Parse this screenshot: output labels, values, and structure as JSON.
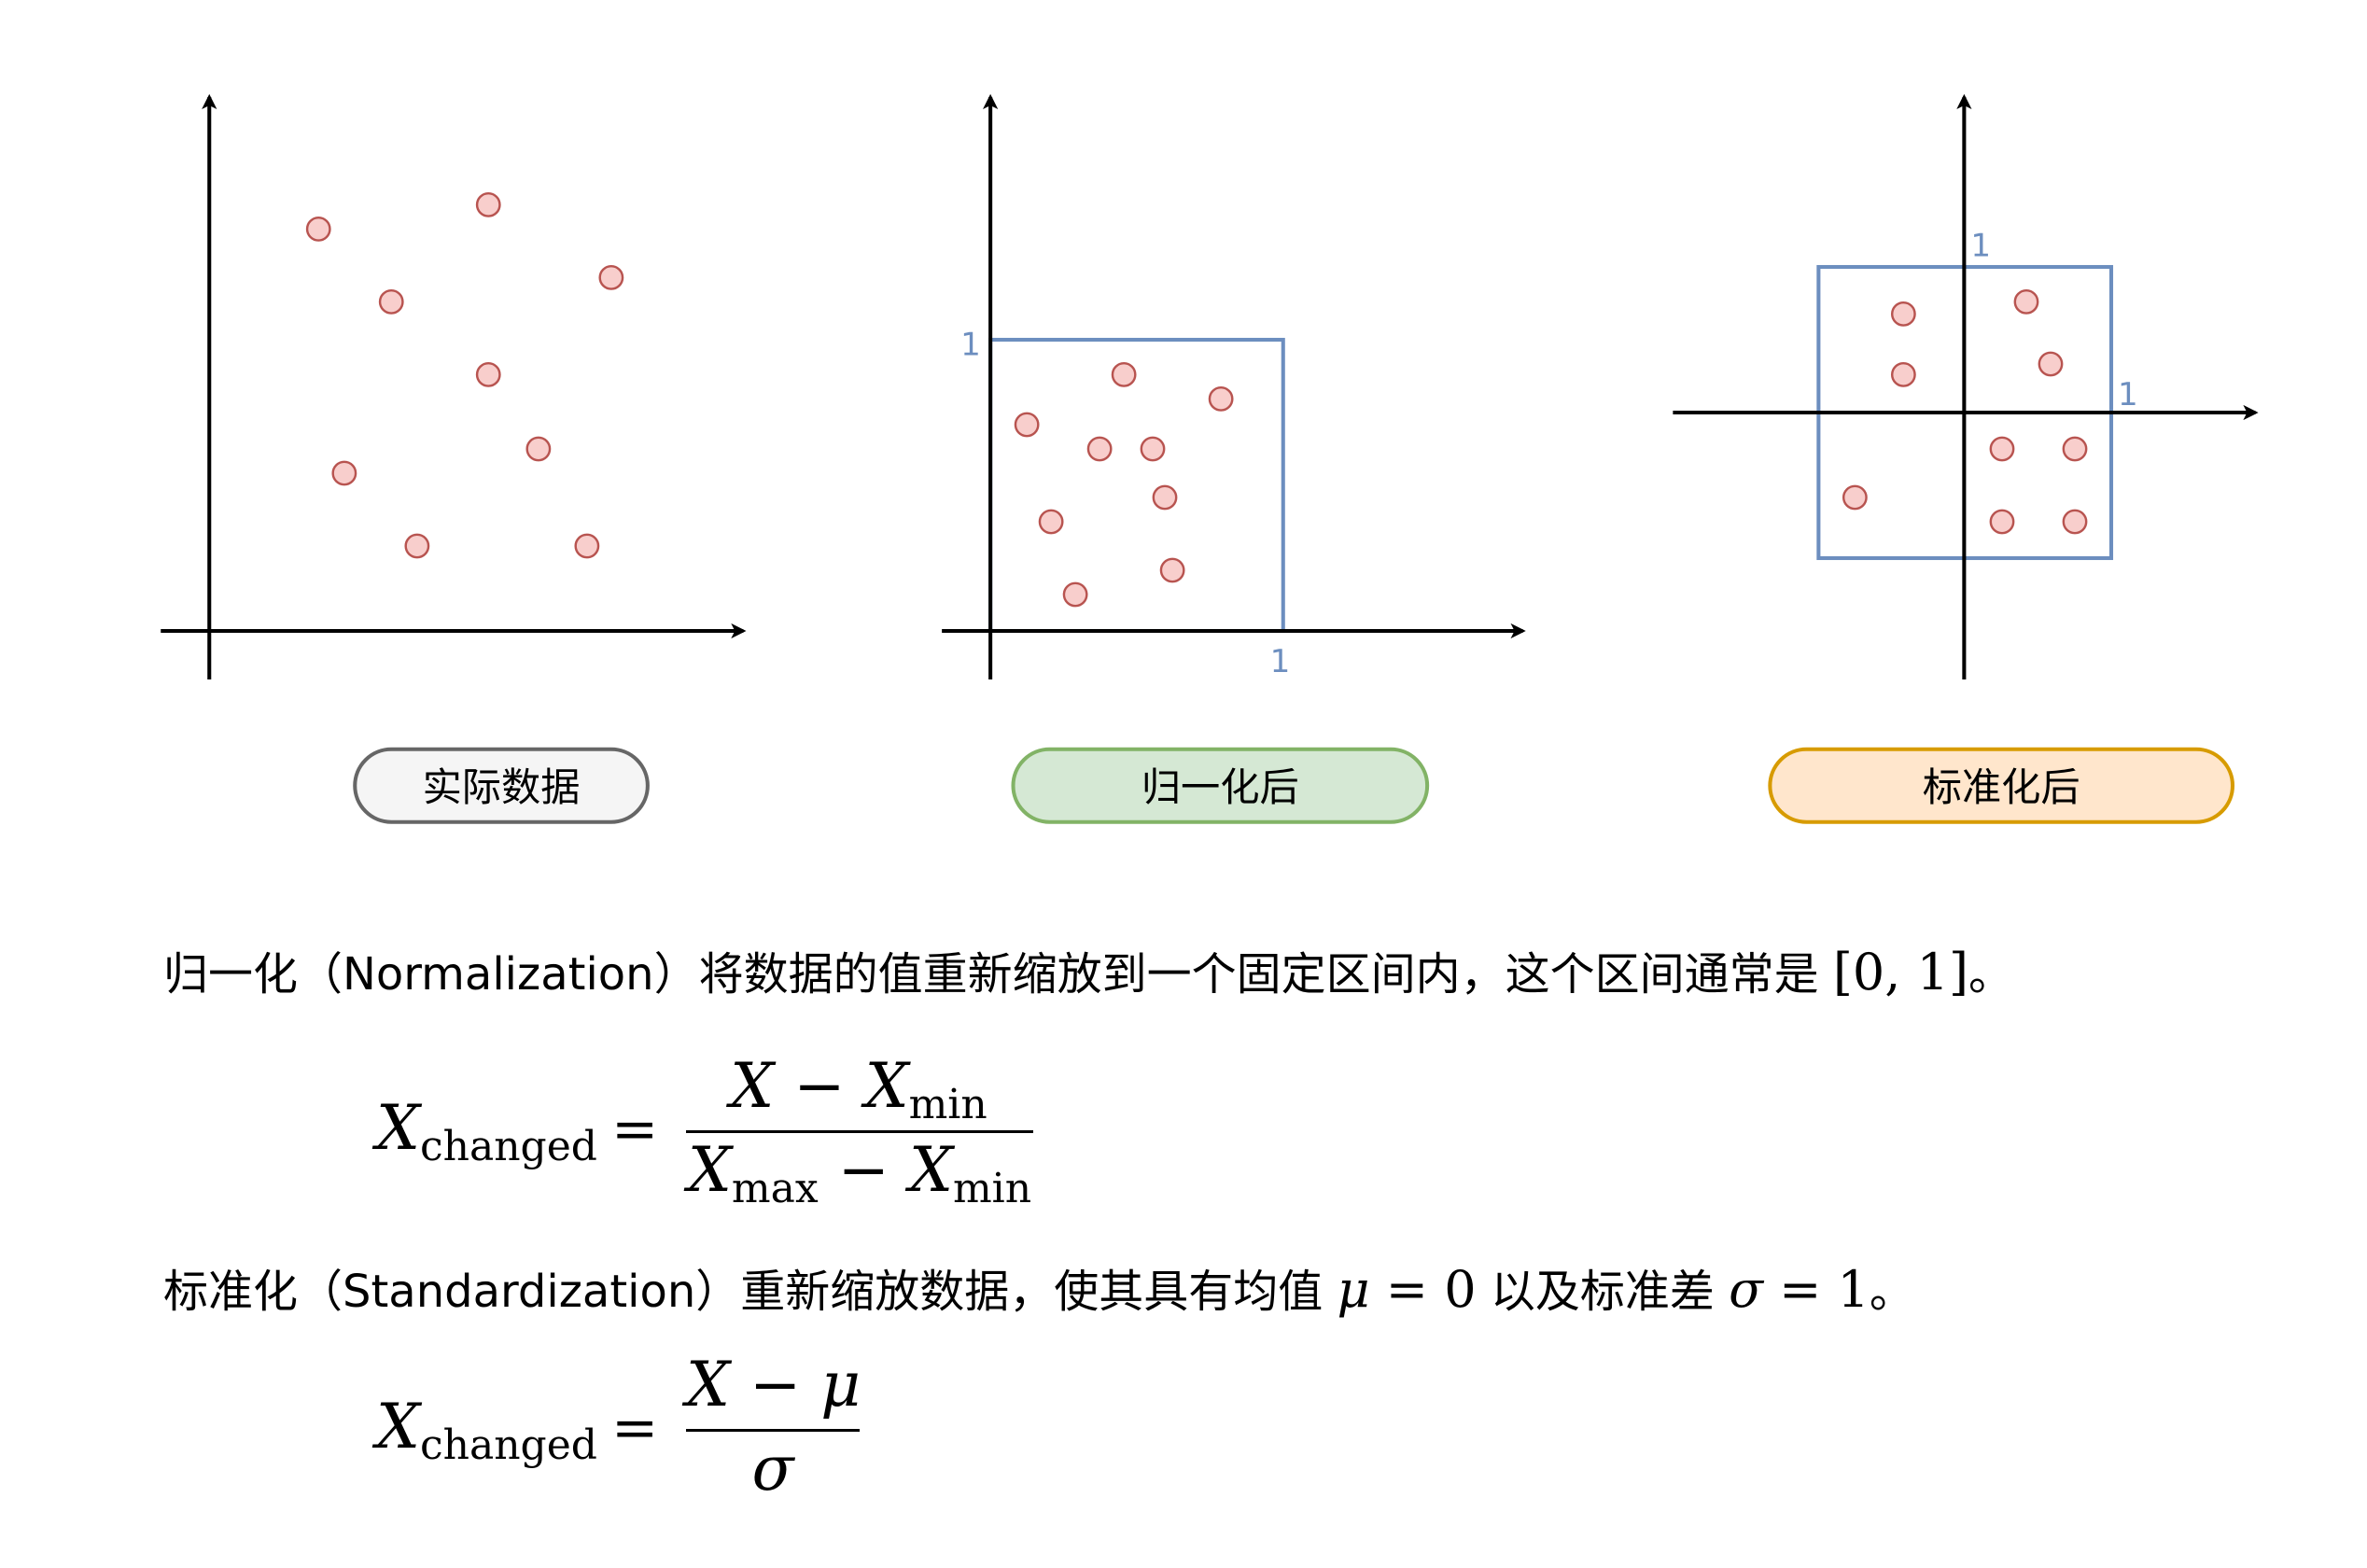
{
  "panels": [
    {
      "label": "实际数据",
      "pill_fill": "#f5f5f5",
      "pill_stroke": "#666666",
      "points": [
        [
          210,
          151
        ],
        [
          322,
          135
        ],
        [
          258,
          199
        ],
        [
          403,
          183
        ],
        [
          322,
          247
        ],
        [
          355,
          296
        ],
        [
          227,
          312
        ],
        [
          275,
          360
        ],
        [
          387,
          360
        ]
      ]
    },
    {
      "label": "归一化后",
      "pill_fill": "#d5e8d4",
      "pill_stroke": "#82b366",
      "unit_x": "1",
      "unit_y": "1",
      "points": [
        [
          741,
          247
        ],
        [
          805,
          263
        ],
        [
          677,
          280
        ],
        [
          725,
          296
        ],
        [
          760,
          296
        ],
        [
          768,
          328
        ],
        [
          693,
          344
        ],
        [
          773,
          376
        ],
        [
          709,
          392
        ]
      ]
    },
    {
      "label": "标准化后",
      "pill_fill": "#ffe6cc",
      "pill_stroke": "#d79b00",
      "unit_x": "1",
      "unit_y": "1",
      "points": [
        [
          1255,
          207
        ],
        [
          1336,
          199
        ],
        [
          1255,
          247
        ],
        [
          1352,
          240
        ],
        [
          1320,
          296
        ],
        [
          1368,
          296
        ],
        [
          1223,
          328
        ],
        [
          1320,
          344
        ],
        [
          1368,
          344
        ]
      ]
    }
  ],
  "colors": {
    "point_fill": "#f8cecc",
    "point_stroke": "#b85450",
    "box_stroke": "#6c8ebf",
    "axis": "#000000"
  },
  "text": {
    "norm_sentence": {
      "prefix": "归一化（Normalization）将数据的值重新缩放到一个固定区间内，这个区间通常是 ",
      "interval": "[0, 1]",
      "suffix": "。"
    },
    "std_sentence": {
      "prefix": "标准化（Standardization）重新缩放数据，使其具有均值 ",
      "mu": "μ",
      "mu_eq": " = 0",
      "middle": "  以及标准差 ",
      "sigma": "σ",
      "sigma_eq": " = 1",
      "suffix": "。"
    }
  },
  "formulas": {
    "norm": {
      "lhs_var": "X",
      "lhs_sub": "changed",
      "eq": "=",
      "num_var1": "X",
      "num_op": " − ",
      "num_var2": "X",
      "num_sub2": "min",
      "den_var1": "X",
      "den_sub1": "max",
      "den_op": " − ",
      "den_var2": "X",
      "den_sub2": "min"
    },
    "std": {
      "lhs_var": "X",
      "lhs_sub": "changed",
      "eq": "=",
      "num_var1": "X",
      "num_op": " − ",
      "num_var2": "μ",
      "den_var": "σ"
    }
  }
}
